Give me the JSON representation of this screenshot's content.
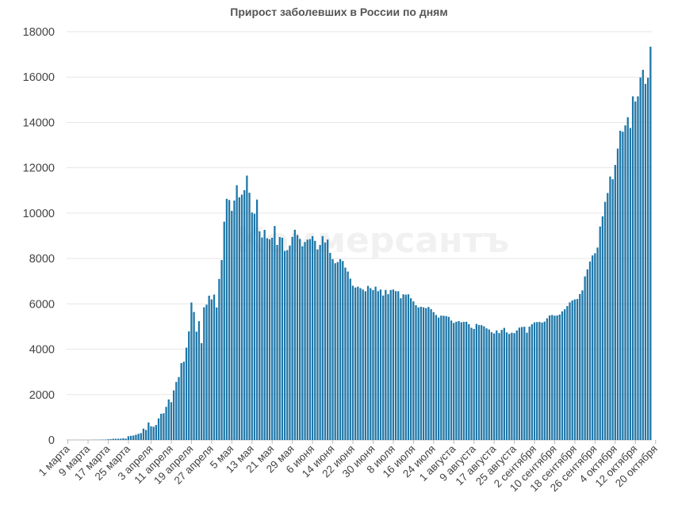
{
  "chart_data": {
    "type": "bar",
    "title": "Прирост заболевших в России по дням",
    "watermark": "Коммерсантъ",
    "xlabel": "",
    "ylabel": "",
    "ylim": [
      0,
      18000
    ],
    "yticks": [
      0,
      2000,
      4000,
      6000,
      8000,
      10000,
      12000,
      14000,
      16000,
      18000
    ],
    "grid": true,
    "legend": "none",
    "bar_color": "#1f77a8",
    "grid_color": "#e6e6e6",
    "x_tick_labels": [
      {
        "day": 0,
        "label": "1 марта"
      },
      {
        "day": 8,
        "label": "9 марта"
      },
      {
        "day": 16,
        "label": "17 марта"
      },
      {
        "day": 24,
        "label": "25 марта"
      },
      {
        "day": 33,
        "label": "3 апреля"
      },
      {
        "day": 41,
        "label": "11 апреля"
      },
      {
        "day": 49,
        "label": "19 апреля"
      },
      {
        "day": 57,
        "label": "27 апреля"
      },
      {
        "day": 65,
        "label": "5 мая"
      },
      {
        "day": 73,
        "label": "13 мая"
      },
      {
        "day": 81,
        "label": "21 мая"
      },
      {
        "day": 89,
        "label": "29 мая"
      },
      {
        "day": 97,
        "label": "6 июня"
      },
      {
        "day": 105,
        "label": "14 июня"
      },
      {
        "day": 113,
        "label": "22 июня"
      },
      {
        "day": 121,
        "label": "30 июня"
      },
      {
        "day": 129,
        "label": "8 июля"
      },
      {
        "day": 137,
        "label": "16 июля"
      },
      {
        "day": 145,
        "label": "24 июля"
      },
      {
        "day": 153,
        "label": "1 августа"
      },
      {
        "day": 161,
        "label": "9 августа"
      },
      {
        "day": 169,
        "label": "17 августа"
      },
      {
        "day": 177,
        "label": "25 августа"
      },
      {
        "day": 185,
        "label": "2 сентября"
      },
      {
        "day": 193,
        "label": "10 сентября"
      },
      {
        "day": 201,
        "label": "18 сентября"
      },
      {
        "day": 209,
        "label": "26 сентября"
      },
      {
        "day": 217,
        "label": "4 октября"
      },
      {
        "day": 225,
        "label": "12 октября"
      },
      {
        "day": 233,
        "label": "20 октября"
      }
    ],
    "values": [
      2,
      0,
      0,
      0,
      1,
      0,
      2,
      0,
      3,
      3,
      6,
      8,
      8,
      14,
      14,
      14,
      30,
      33,
      52,
      52,
      53,
      57,
      71,
      58,
      163,
      182,
      196,
      228,
      270,
      302,
      501,
      440,
      771,
      601,
      582,
      658,
      954,
      1154,
      1175,
      1459,
      1786,
      1667,
      2186,
      2558,
      2774,
      3388,
      3448,
      4070,
      4785,
      6060,
      5642,
      4774,
      5236,
      4268,
      5849,
      5966,
      6361,
      6198,
      6411,
      5841,
      7099,
      7933,
      9623,
      10633,
      10581,
      10102,
      10559,
      11231,
      10699,
      10817,
      11012,
      11656,
      10899,
      10028,
      9974,
      10598,
      9200,
      8926,
      9263,
      8894,
      8849,
      8915,
      9434,
      8599,
      8946,
      8915,
      8338,
      8371,
      8572,
      8952,
      9268,
      9035,
      8863,
      8536,
      8726,
      8831,
      8855,
      8985,
      8779,
      8404,
      8595,
      8987,
      8706,
      8835,
      8248,
      7972,
      7790,
      7843,
      7972,
      7889,
      7600,
      7425,
      7113,
      6800,
      6719,
      6760,
      6693,
      6632,
      6556,
      6791,
      6693,
      6611,
      6760,
      6562,
      6632,
      6368,
      6615,
      6428,
      6611,
      6635,
      6562,
      6556,
      6248,
      6422,
      6406,
      6422,
      6248,
      6109,
      5940,
      5842,
      5871,
      5848,
      5811,
      5862,
      5765,
      5635,
      5509,
      5394,
      5482,
      5475,
      5462,
      5427,
      5267,
      5159,
      5212,
      5241,
      5189,
      5204,
      5212,
      5102,
      4945,
      4892,
      5118,
      5065,
      5061,
      5010,
      4921,
      4870,
      4748,
      4696,
      4829,
      4711,
      4852,
      4941,
      4744,
      4676,
      4729,
      4710,
      4829,
      4952,
      4980,
      4993,
      4729,
      4995,
      5099,
      5185,
      5195,
      5205,
      5172,
      5218,
      5363,
      5488,
      5509,
      5478,
      5488,
      5529,
      5670,
      5762,
      5905,
      6065,
      6148,
      6196,
      6215,
      6431,
      6595,
      7212,
      7523,
      7867,
      8135,
      8232,
      8481,
      9412,
      9859,
      10499,
      10888,
      11615,
      11493,
      12126,
      12846,
      13634,
      13592,
      13868,
      14231,
      13754,
      15150,
      14922,
      15150,
      15982,
      16319,
      15700,
      15971,
      17340
    ]
  }
}
